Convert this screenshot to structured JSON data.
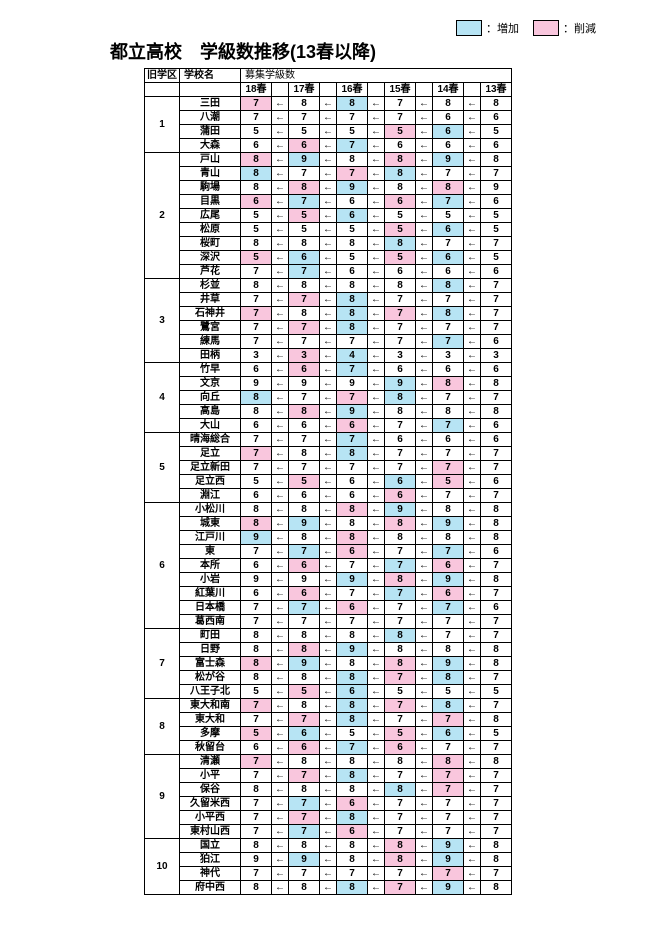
{
  "title": "都立高校　学級数推移(13春以降)",
  "legend": {
    "increase_label": "：増加",
    "decrease_label": "：削減",
    "increase_color": "#b7e4f4",
    "decrease_color": "#f9c6dd"
  },
  "headers": {
    "district": "旧学区",
    "school": "学校名",
    "recruit": "募集学級数",
    "years": [
      "18春",
      "17春",
      "16春",
      "15春",
      "14春",
      "13春"
    ]
  },
  "districts": [
    {
      "id": "1",
      "schools": [
        {
          "name": "三田",
          "values": [
            7,
            8,
            8,
            7,
            8,
            8
          ],
          "colors": [
            "decrease",
            "",
            "increase",
            "",
            "",
            ""
          ]
        },
        {
          "name": "八潮",
          "values": [
            7,
            7,
            7,
            7,
            6,
            6
          ],
          "colors": [
            "",
            "",
            "",
            "",
            "",
            ""
          ]
        },
        {
          "name": "蒲田",
          "values": [
            5,
            5,
            5,
            5,
            6,
            5
          ],
          "colors": [
            "",
            "",
            "",
            "decrease",
            "increase",
            ""
          ]
        },
        {
          "name": "大森",
          "values": [
            6,
            6,
            7,
            6,
            6,
            6
          ],
          "colors": [
            "",
            "decrease",
            "increase",
            "",
            "",
            ""
          ]
        }
      ]
    },
    {
      "id": "2",
      "schools": [
        {
          "name": "戸山",
          "values": [
            8,
            9,
            8,
            8,
            9,
            8
          ],
          "colors": [
            "decrease",
            "increase",
            "",
            "decrease",
            "increase",
            ""
          ]
        },
        {
          "name": "青山",
          "values": [
            8,
            7,
            7,
            8,
            7,
            7
          ],
          "colors": [
            "increase",
            "",
            "decrease",
            "increase",
            "",
            ""
          ]
        },
        {
          "name": "駒場",
          "values": [
            8,
            8,
            9,
            8,
            8,
            9
          ],
          "colors": [
            "",
            "decrease",
            "increase",
            "",
            "decrease",
            ""
          ]
        },
        {
          "name": "目黒",
          "values": [
            6,
            7,
            6,
            6,
            7,
            6
          ],
          "colors": [
            "decrease",
            "increase",
            "",
            "decrease",
            "increase",
            ""
          ]
        },
        {
          "name": "広尾",
          "values": [
            5,
            5,
            6,
            5,
            5,
            5
          ],
          "colors": [
            "",
            "decrease",
            "increase",
            "",
            "",
            ""
          ]
        },
        {
          "name": "松原",
          "values": [
            5,
            5,
            5,
            5,
            6,
            5
          ],
          "colors": [
            "",
            "",
            "",
            "decrease",
            "increase",
            ""
          ]
        },
        {
          "name": "桜町",
          "values": [
            8,
            8,
            8,
            8,
            7,
            7
          ],
          "colors": [
            "",
            "",
            "",
            "increase",
            "",
            ""
          ]
        },
        {
          "name": "深沢",
          "values": [
            5,
            6,
            5,
            5,
            6,
            5
          ],
          "colors": [
            "decrease",
            "increase",
            "",
            "decrease",
            "increase",
            ""
          ]
        },
        {
          "name": "芦花",
          "values": [
            7,
            7,
            6,
            6,
            6,
            6
          ],
          "colors": [
            "",
            "increase",
            "",
            "",
            "",
            ""
          ]
        }
      ]
    },
    {
      "id": "3",
      "schools": [
        {
          "name": "杉並",
          "values": [
            8,
            8,
            8,
            8,
            8,
            7
          ],
          "colors": [
            "",
            "",
            "",
            "",
            "increase",
            ""
          ]
        },
        {
          "name": "井草",
          "values": [
            7,
            7,
            8,
            7,
            7,
            7
          ],
          "colors": [
            "",
            "decrease",
            "increase",
            "",
            "",
            ""
          ]
        },
        {
          "name": "石神井",
          "values": [
            7,
            8,
            8,
            7,
            8,
            7
          ],
          "colors": [
            "decrease",
            "",
            "increase",
            "decrease",
            "increase",
            ""
          ]
        },
        {
          "name": "鷺宮",
          "values": [
            7,
            7,
            8,
            7,
            7,
            7
          ],
          "colors": [
            "",
            "decrease",
            "increase",
            "",
            "",
            ""
          ]
        },
        {
          "name": "練馬",
          "values": [
            7,
            7,
            7,
            7,
            7,
            6
          ],
          "colors": [
            "",
            "",
            "",
            "",
            "increase",
            ""
          ]
        },
        {
          "name": "田柄",
          "values": [
            3,
            3,
            4,
            3,
            3,
            3
          ],
          "colors": [
            "",
            "decrease",
            "increase",
            "",
            "",
            ""
          ]
        }
      ]
    },
    {
      "id": "4",
      "schools": [
        {
          "name": "竹早",
          "values": [
            6,
            6,
            7,
            6,
            6,
            6
          ],
          "colors": [
            "",
            "decrease",
            "increase",
            "",
            "",
            ""
          ]
        },
        {
          "name": "文京",
          "values": [
            9,
            9,
            9,
            9,
            8,
            8
          ],
          "colors": [
            "",
            "",
            "",
            "increase",
            "decrease",
            ""
          ]
        },
        {
          "name": "向丘",
          "values": [
            8,
            7,
            7,
            8,
            7,
            7
          ],
          "colors": [
            "increase",
            "",
            "decrease",
            "increase",
            "",
            ""
          ]
        },
        {
          "name": "高島",
          "values": [
            8,
            8,
            9,
            8,
            8,
            8
          ],
          "colors": [
            "",
            "decrease",
            "increase",
            "",
            "",
            ""
          ]
        },
        {
          "name": "大山",
          "values": [
            6,
            6,
            6,
            7,
            7,
            6
          ],
          "colors": [
            "",
            "",
            "decrease",
            "",
            "increase",
            ""
          ]
        }
      ]
    },
    {
      "id": "5",
      "schools": [
        {
          "name": "晴海総合",
          "values": [
            7,
            7,
            7,
            6,
            6,
            6
          ],
          "colors": [
            "",
            "",
            "increase",
            "",
            "",
            ""
          ]
        },
        {
          "name": "足立",
          "values": [
            7,
            8,
            8,
            7,
            7,
            7
          ],
          "colors": [
            "decrease",
            "",
            "increase",
            "",
            "",
            ""
          ]
        },
        {
          "name": "足立新田",
          "values": [
            7,
            7,
            7,
            7,
            7,
            7
          ],
          "colors": [
            "",
            "",
            "",
            "",
            "decrease",
            ""
          ]
        },
        {
          "name": "足立西",
          "values": [
            5,
            5,
            6,
            6,
            5,
            6
          ],
          "colors": [
            "",
            "decrease",
            "",
            "increase",
            "decrease",
            ""
          ]
        },
        {
          "name": "淵江",
          "values": [
            6,
            6,
            6,
            6,
            7,
            7
          ],
          "colors": [
            "",
            "",
            "",
            "decrease",
            "",
            ""
          ]
        }
      ]
    },
    {
      "id": "6",
      "schools": [
        {
          "name": "小松川",
          "values": [
            8,
            8,
            8,
            9,
            8,
            8
          ],
          "colors": [
            "",
            "",
            "decrease",
            "increase",
            "",
            ""
          ]
        },
        {
          "name": "城東",
          "values": [
            8,
            9,
            8,
            8,
            9,
            8
          ],
          "colors": [
            "decrease",
            "increase",
            "",
            "decrease",
            "increase",
            ""
          ]
        },
        {
          "name": "江戸川",
          "values": [
            9,
            8,
            8,
            8,
            8,
            8
          ],
          "colors": [
            "increase",
            "",
            "decrease",
            "",
            "",
            ""
          ]
        },
        {
          "name": "東",
          "values": [
            7,
            7,
            6,
            7,
            7,
            6
          ],
          "colors": [
            "",
            "increase",
            "decrease",
            "",
            "increase",
            ""
          ]
        },
        {
          "name": "本所",
          "values": [
            6,
            6,
            7,
            7,
            6,
            7
          ],
          "colors": [
            "",
            "decrease",
            "",
            "increase",
            "decrease",
            ""
          ]
        },
        {
          "name": "小岩",
          "values": [
            9,
            9,
            9,
            8,
            9,
            8
          ],
          "colors": [
            "",
            "",
            "increase",
            "decrease",
            "increase",
            ""
          ]
        },
        {
          "name": "紅葉川",
          "values": [
            6,
            6,
            7,
            7,
            6,
            7
          ],
          "colors": [
            "",
            "decrease",
            "",
            "increase",
            "decrease",
            ""
          ]
        },
        {
          "name": "日本橋",
          "values": [
            7,
            7,
            6,
            7,
            7,
            6
          ],
          "colors": [
            "",
            "increase",
            "decrease",
            "",
            "increase",
            ""
          ]
        },
        {
          "name": "葛西南",
          "values": [
            7,
            7,
            7,
            7,
            7,
            7
          ],
          "colors": [
            "",
            "",
            "",
            "",
            "",
            ""
          ]
        }
      ]
    },
    {
      "id": "7",
      "schools": [
        {
          "name": "町田",
          "values": [
            8,
            8,
            8,
            8,
            7,
            7
          ],
          "colors": [
            "",
            "",
            "",
            "increase",
            "",
            ""
          ]
        },
        {
          "name": "日野",
          "values": [
            8,
            8,
            9,
            8,
            8,
            8
          ],
          "colors": [
            "",
            "decrease",
            "increase",
            "",
            "",
            ""
          ]
        },
        {
          "name": "富士森",
          "values": [
            8,
            9,
            8,
            8,
            9,
            8
          ],
          "colors": [
            "decrease",
            "increase",
            "",
            "decrease",
            "increase",
            ""
          ]
        },
        {
          "name": "松が谷",
          "values": [
            8,
            8,
            8,
            7,
            8,
            7
          ],
          "colors": [
            "",
            "",
            "increase",
            "decrease",
            "increase",
            ""
          ]
        },
        {
          "name": "八王子北",
          "values": [
            5,
            5,
            6,
            5,
            5,
            5
          ],
          "colors": [
            "",
            "decrease",
            "increase",
            "",
            "",
            ""
          ]
        }
      ]
    },
    {
      "id": "8",
      "schools": [
        {
          "name": "東大和南",
          "values": [
            7,
            8,
            8,
            7,
            8,
            7
          ],
          "colors": [
            "decrease",
            "",
            "increase",
            "decrease",
            "increase",
            ""
          ]
        },
        {
          "name": "東大和",
          "values": [
            7,
            7,
            8,
            7,
            7,
            8
          ],
          "colors": [
            "",
            "decrease",
            "increase",
            "",
            "decrease",
            ""
          ]
        },
        {
          "name": "多摩",
          "values": [
            5,
            6,
            5,
            5,
            6,
            5
          ],
          "colors": [
            "decrease",
            "increase",
            "",
            "decrease",
            "increase",
            ""
          ]
        },
        {
          "name": "秋留台",
          "values": [
            6,
            6,
            7,
            6,
            7,
            7
          ],
          "colors": [
            "",
            "decrease",
            "increase",
            "decrease",
            "",
            ""
          ]
        }
      ]
    },
    {
      "id": "9",
      "schools": [
        {
          "name": "清瀬",
          "values": [
            7,
            8,
            8,
            8,
            8,
            8
          ],
          "colors": [
            "decrease",
            "",
            "",
            "",
            "decrease",
            ""
          ]
        },
        {
          "name": "小平",
          "values": [
            7,
            7,
            8,
            7,
            7,
            7
          ],
          "colors": [
            "",
            "decrease",
            "increase",
            "",
            "decrease",
            ""
          ]
        },
        {
          "name": "保谷",
          "values": [
            8,
            8,
            8,
            8,
            7,
            7
          ],
          "colors": [
            "",
            "",
            "",
            "increase",
            "decrease",
            ""
          ]
        },
        {
          "name": "久留米西",
          "values": [
            7,
            7,
            6,
            7,
            7,
            7
          ],
          "colors": [
            "",
            "increase",
            "decrease",
            "",
            "",
            ""
          ]
        },
        {
          "name": "小平西",
          "values": [
            7,
            7,
            8,
            7,
            7,
            7
          ],
          "colors": [
            "",
            "decrease",
            "increase",
            "",
            "",
            ""
          ]
        },
        {
          "name": "東村山西",
          "values": [
            7,
            7,
            6,
            7,
            7,
            7
          ],
          "colors": [
            "",
            "increase",
            "decrease",
            "",
            "",
            ""
          ]
        }
      ]
    },
    {
      "id": "10",
      "schools": [
        {
          "name": "国立",
          "values": [
            8,
            8,
            8,
            8,
            9,
            8
          ],
          "colors": [
            "",
            "",
            "",
            "decrease",
            "increase",
            ""
          ]
        },
        {
          "name": "狛江",
          "values": [
            9,
            9,
            8,
            8,
            9,
            8
          ],
          "colors": [
            "",
            "increase",
            "",
            "decrease",
            "increase",
            ""
          ]
        },
        {
          "name": "神代",
          "values": [
            7,
            7,
            7,
            7,
            7,
            7
          ],
          "colors": [
            "",
            "",
            "",
            "",
            "decrease",
            ""
          ]
        },
        {
          "name": "府中西",
          "values": [
            8,
            8,
            8,
            7,
            9,
            8
          ],
          "colors": [
            "",
            "",
            "increase",
            "decrease",
            "increase",
            ""
          ]
        }
      ]
    }
  ]
}
